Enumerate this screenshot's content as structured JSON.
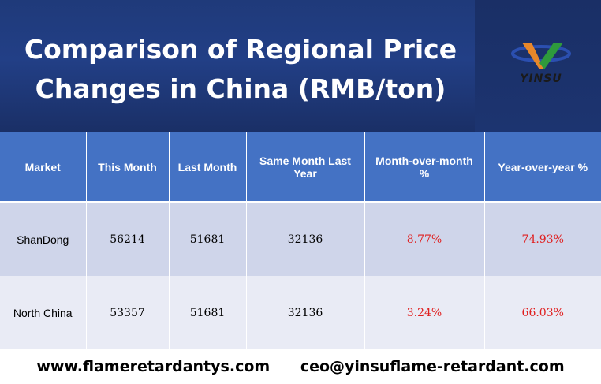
{
  "banner": {
    "title_line1": "Comparison of Regional Price",
    "title_line2": "Changes in China (RMB/ton)",
    "logo_text": "YINSU"
  },
  "table": {
    "headers": [
      "Market",
      "This Month",
      "Last Month",
      "Same Month Last Year",
      "Month-over-month %",
      "Year-over-year %"
    ],
    "rows": [
      {
        "market": "ShanDong",
        "this_month": "56214",
        "last_month": "51681",
        "same_month_last_year": "32136",
        "mom": "8.77%",
        "yoy": "74.93%"
      },
      {
        "market": "North China",
        "this_month": "53357",
        "last_month": "51681",
        "same_month_last_year": "32136",
        "mom": "3.24%",
        "yoy": "66.03%"
      }
    ]
  },
  "footer": {
    "website": "www.flameretardantys.com",
    "email": "ceo@yinsuflame-retardant.com"
  },
  "colors": {
    "header_bg": "#4472c4",
    "row_a_bg": "#cfd5ea",
    "row_b_bg": "#e9ebf5",
    "percent_text": "#e02020",
    "banner_bg": "#1f3a7a"
  }
}
